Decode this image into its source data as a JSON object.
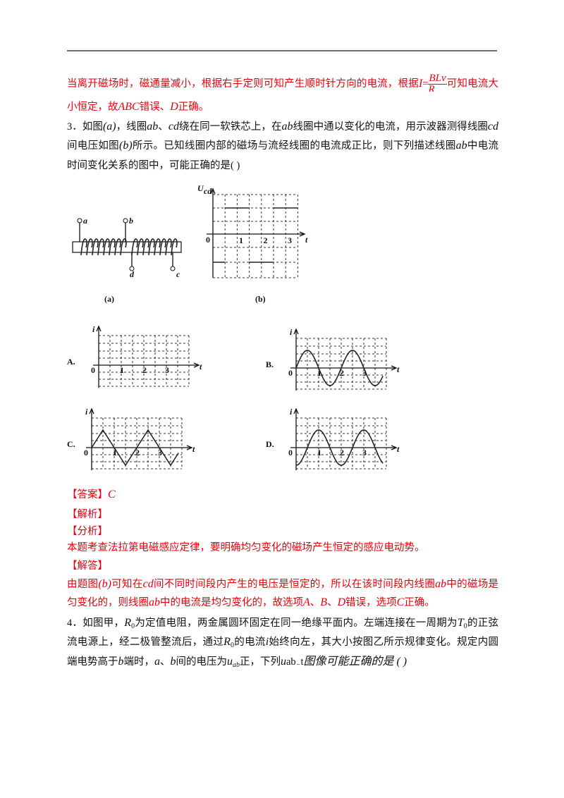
{
  "prev": {
    "line1": [
      "当离开磁场时，磁通量减小，根据右手定则可知产生顺时针方向的电流，根据",
      "可知电流大"
    ],
    "formula": {
      "lhs": "I",
      "eq": "=",
      "num": "BLv",
      "den": "R"
    },
    "line2": [
      "小恒定，故",
      "ABC",
      "错误、",
      "D",
      "正确。"
    ]
  },
  "q3": {
    "lines": [
      [
        "3．如图",
        "(a)",
        "，线圈",
        "ab",
        "、",
        "cd",
        "绕在同一软铁芯上，在",
        "ab",
        "线圈中通以变化的电流，用示波器测得线圈",
        "cd"
      ],
      [
        "间电压如图",
        "(b)",
        "所示。已知线圈内部的磁场与流经线圈的电流成正比，则下列描述线圈",
        "ab",
        "中电流随"
      ],
      [
        "时间变化关系的图中，可能正确的是(  )"
      ]
    ],
    "figure_a": {
      "labels": {
        "a": "a",
        "b": "b",
        "c": "c",
        "d": "d"
      },
      "caption": "(a)"
    },
    "figure_b": {
      "y_label": "U",
      "y_sub": "cd",
      "origin": "0",
      "ticks": [
        "1",
        "2",
        "3"
      ],
      "x_label": "t",
      "caption": "(b)"
    },
    "options": {
      "letters": [
        "A.",
        "B.",
        "C.",
        "D."
      ],
      "y_label": "i",
      "origin": "0",
      "ticks": [
        "1",
        "2",
        "3"
      ],
      "x_label": "t"
    }
  },
  "answer": {
    "lines": [
      [
        "【答案】",
        "C"
      ],
      [
        "【解析】"
      ],
      [
        "【分析】"
      ],
      [
        "本题考查法拉第电磁感应定律，要明确均匀变化的磁场产生恒定的感应电动势。"
      ],
      [
        "【解答】"
      ],
      [
        "由题图",
        "(b)",
        "可知在",
        "cd",
        "间不同时间段内产生的电压是恒定的，所以在该时间段内线圈",
        "ab",
        "中的磁场是均"
      ],
      [
        "匀变化的，则线圈",
        "ab",
        "中的电流是均匀变化的，故选项",
        "A",
        "、",
        "B",
        "、",
        "D",
        "错误，选项",
        "C",
        "正确。"
      ]
    ]
  },
  "q4": {
    "lines": [
      [
        "4．如图甲，",
        "R",
        "0",
        "为定值电阻，两金属圆环固定在同一绝缘平面内。左端连接在一周期为",
        "T",
        "0",
        "的正弦交"
      ],
      [
        "流电源上，经二极管整流后，通过",
        "R",
        "0",
        "的电流",
        "i",
        "始终向左，其大小按图乙所示规律变化。规定内圆环",
        "a"
      ],
      [
        "端电势高于",
        "b",
        "端时，",
        "a",
        "、",
        "b",
        "间的电压为",
        "u",
        "ab",
        "正，下列",
        "u",
        "ab",
        "−",
        "t",
        "图像可能正确的是 (  )"
      ]
    ]
  }
}
